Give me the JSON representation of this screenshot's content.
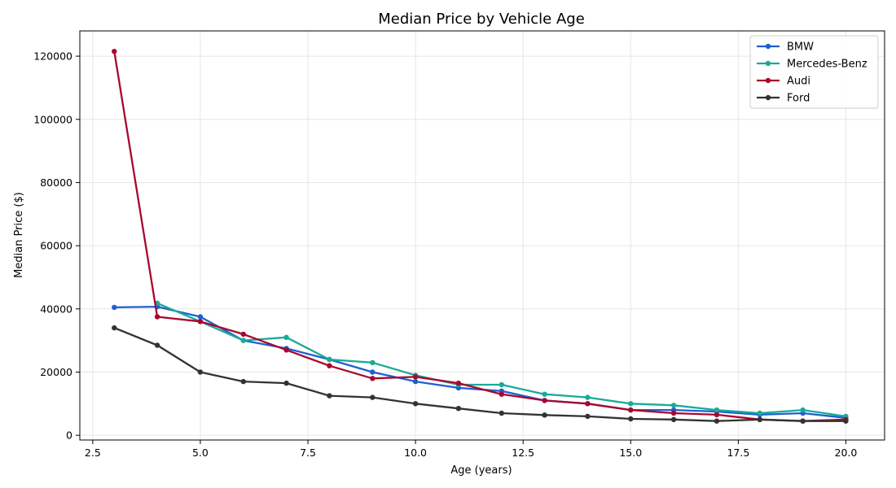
{
  "chart_data": {
    "type": "line",
    "title": "Median Price by Vehicle Age",
    "xlabel": "Age (years)",
    "ylabel": "Median Price ($)",
    "xlim": [
      2.2,
      20.9
    ],
    "ylim": [
      -1500,
      128000
    ],
    "xticks": [
      2.5,
      5.0,
      7.5,
      10.0,
      12.5,
      15.0,
      17.5,
      20.0
    ],
    "xtick_labels": [
      "2.5",
      "5.0",
      "7.5",
      "10.0",
      "12.5",
      "15.0",
      "17.5",
      "20.0"
    ],
    "yticks": [
      0,
      20000,
      40000,
      60000,
      80000,
      100000,
      120000
    ],
    "ytick_labels": [
      "0",
      "20000",
      "40000",
      "60000",
      "80000",
      "100000",
      "120000"
    ],
    "grid": true,
    "legend_position": "top-right",
    "x": [
      3,
      4,
      5,
      6,
      7,
      8,
      9,
      10,
      11,
      12,
      13,
      14,
      15,
      16,
      17,
      18,
      19,
      20
    ],
    "series": [
      {
        "name": "BMW",
        "color": "#1f5fd0",
        "values": [
          40500,
          40700,
          37500,
          30000,
          27500,
          24000,
          20000,
          17000,
          15000,
          14000,
          11000,
          10000,
          8000,
          8000,
          7500,
          6500,
          7000,
          5500
        ]
      },
      {
        "name": "Mercedes-Benz",
        "color": "#1aab96",
        "values": [
          null,
          41800,
          36000,
          30000,
          31000,
          24000,
          23000,
          19000,
          16000,
          16000,
          13000,
          12000,
          10000,
          9500,
          8000,
          7000,
          8000,
          6000
        ]
      },
      {
        "name": "Audi",
        "color": "#a8072e",
        "values": [
          121500,
          37500,
          36000,
          32000,
          27000,
          22000,
          18000,
          18500,
          16500,
          13000,
          11000,
          10000,
          8000,
          7000,
          6500,
          5000,
          4500,
          5000
        ]
      },
      {
        "name": "Ford",
        "color": "#333333",
        "values": [
          34000,
          28500,
          20000,
          17000,
          16500,
          12500,
          12000,
          10000,
          8500,
          7000,
          6400,
          6000,
          5200,
          5000,
          4500,
          5000,
          4500,
          4500
        ]
      }
    ]
  }
}
